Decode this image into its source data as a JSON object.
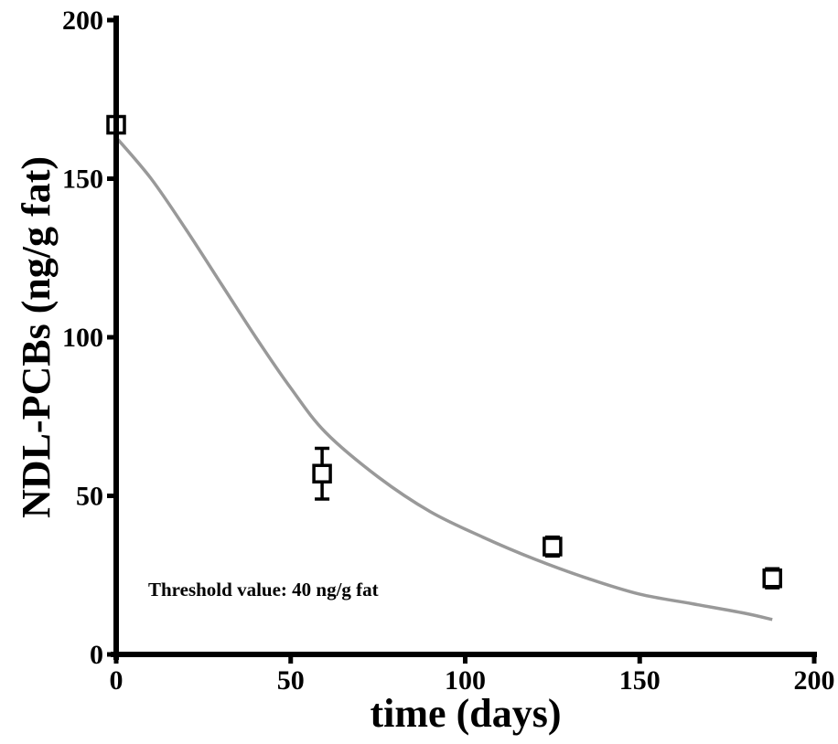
{
  "chart_data": {
    "type": "scatter",
    "xlabel": "time (days)",
    "ylabel": "NDL-PCBs (ng/g fat)",
    "xlim": [
      0,
      200
    ],
    "ylim": [
      0,
      200
    ],
    "xticks": [
      "0",
      "50",
      "100",
      "150",
      "200"
    ],
    "yticks": [
      "0",
      "50",
      "100",
      "150",
      "200"
    ],
    "grid": false,
    "annotation": "Threshold value: 40 ng/g fat",
    "colors": {
      "axis": "#000000",
      "points": "#000000",
      "curve": "#999999"
    },
    "points": [
      {
        "x": 0,
        "y": 167,
        "err": 2
      },
      {
        "x": 59,
        "y": 57,
        "err": 8
      },
      {
        "x": 125,
        "y": 34,
        "err": 3
      },
      {
        "x": 188,
        "y": 24,
        "err": 3
      }
    ],
    "fit_curve": [
      {
        "x": 0,
        "y": 163
      },
      {
        "x": 10,
        "y": 150
      },
      {
        "x": 20,
        "y": 134
      },
      {
        "x": 30,
        "y": 117
      },
      {
        "x": 40,
        "y": 100
      },
      {
        "x": 50,
        "y": 84
      },
      {
        "x": 60,
        "y": 70
      },
      {
        "x": 75,
        "y": 56
      },
      {
        "x": 90,
        "y": 45
      },
      {
        "x": 105,
        "y": 37
      },
      {
        "x": 120,
        "y": 30
      },
      {
        "x": 135,
        "y": 24
      },
      {
        "x": 150,
        "y": 19
      },
      {
        "x": 165,
        "y": 16
      },
      {
        "x": 180,
        "y": 13
      },
      {
        "x": 188,
        "y": 11
      }
    ]
  }
}
